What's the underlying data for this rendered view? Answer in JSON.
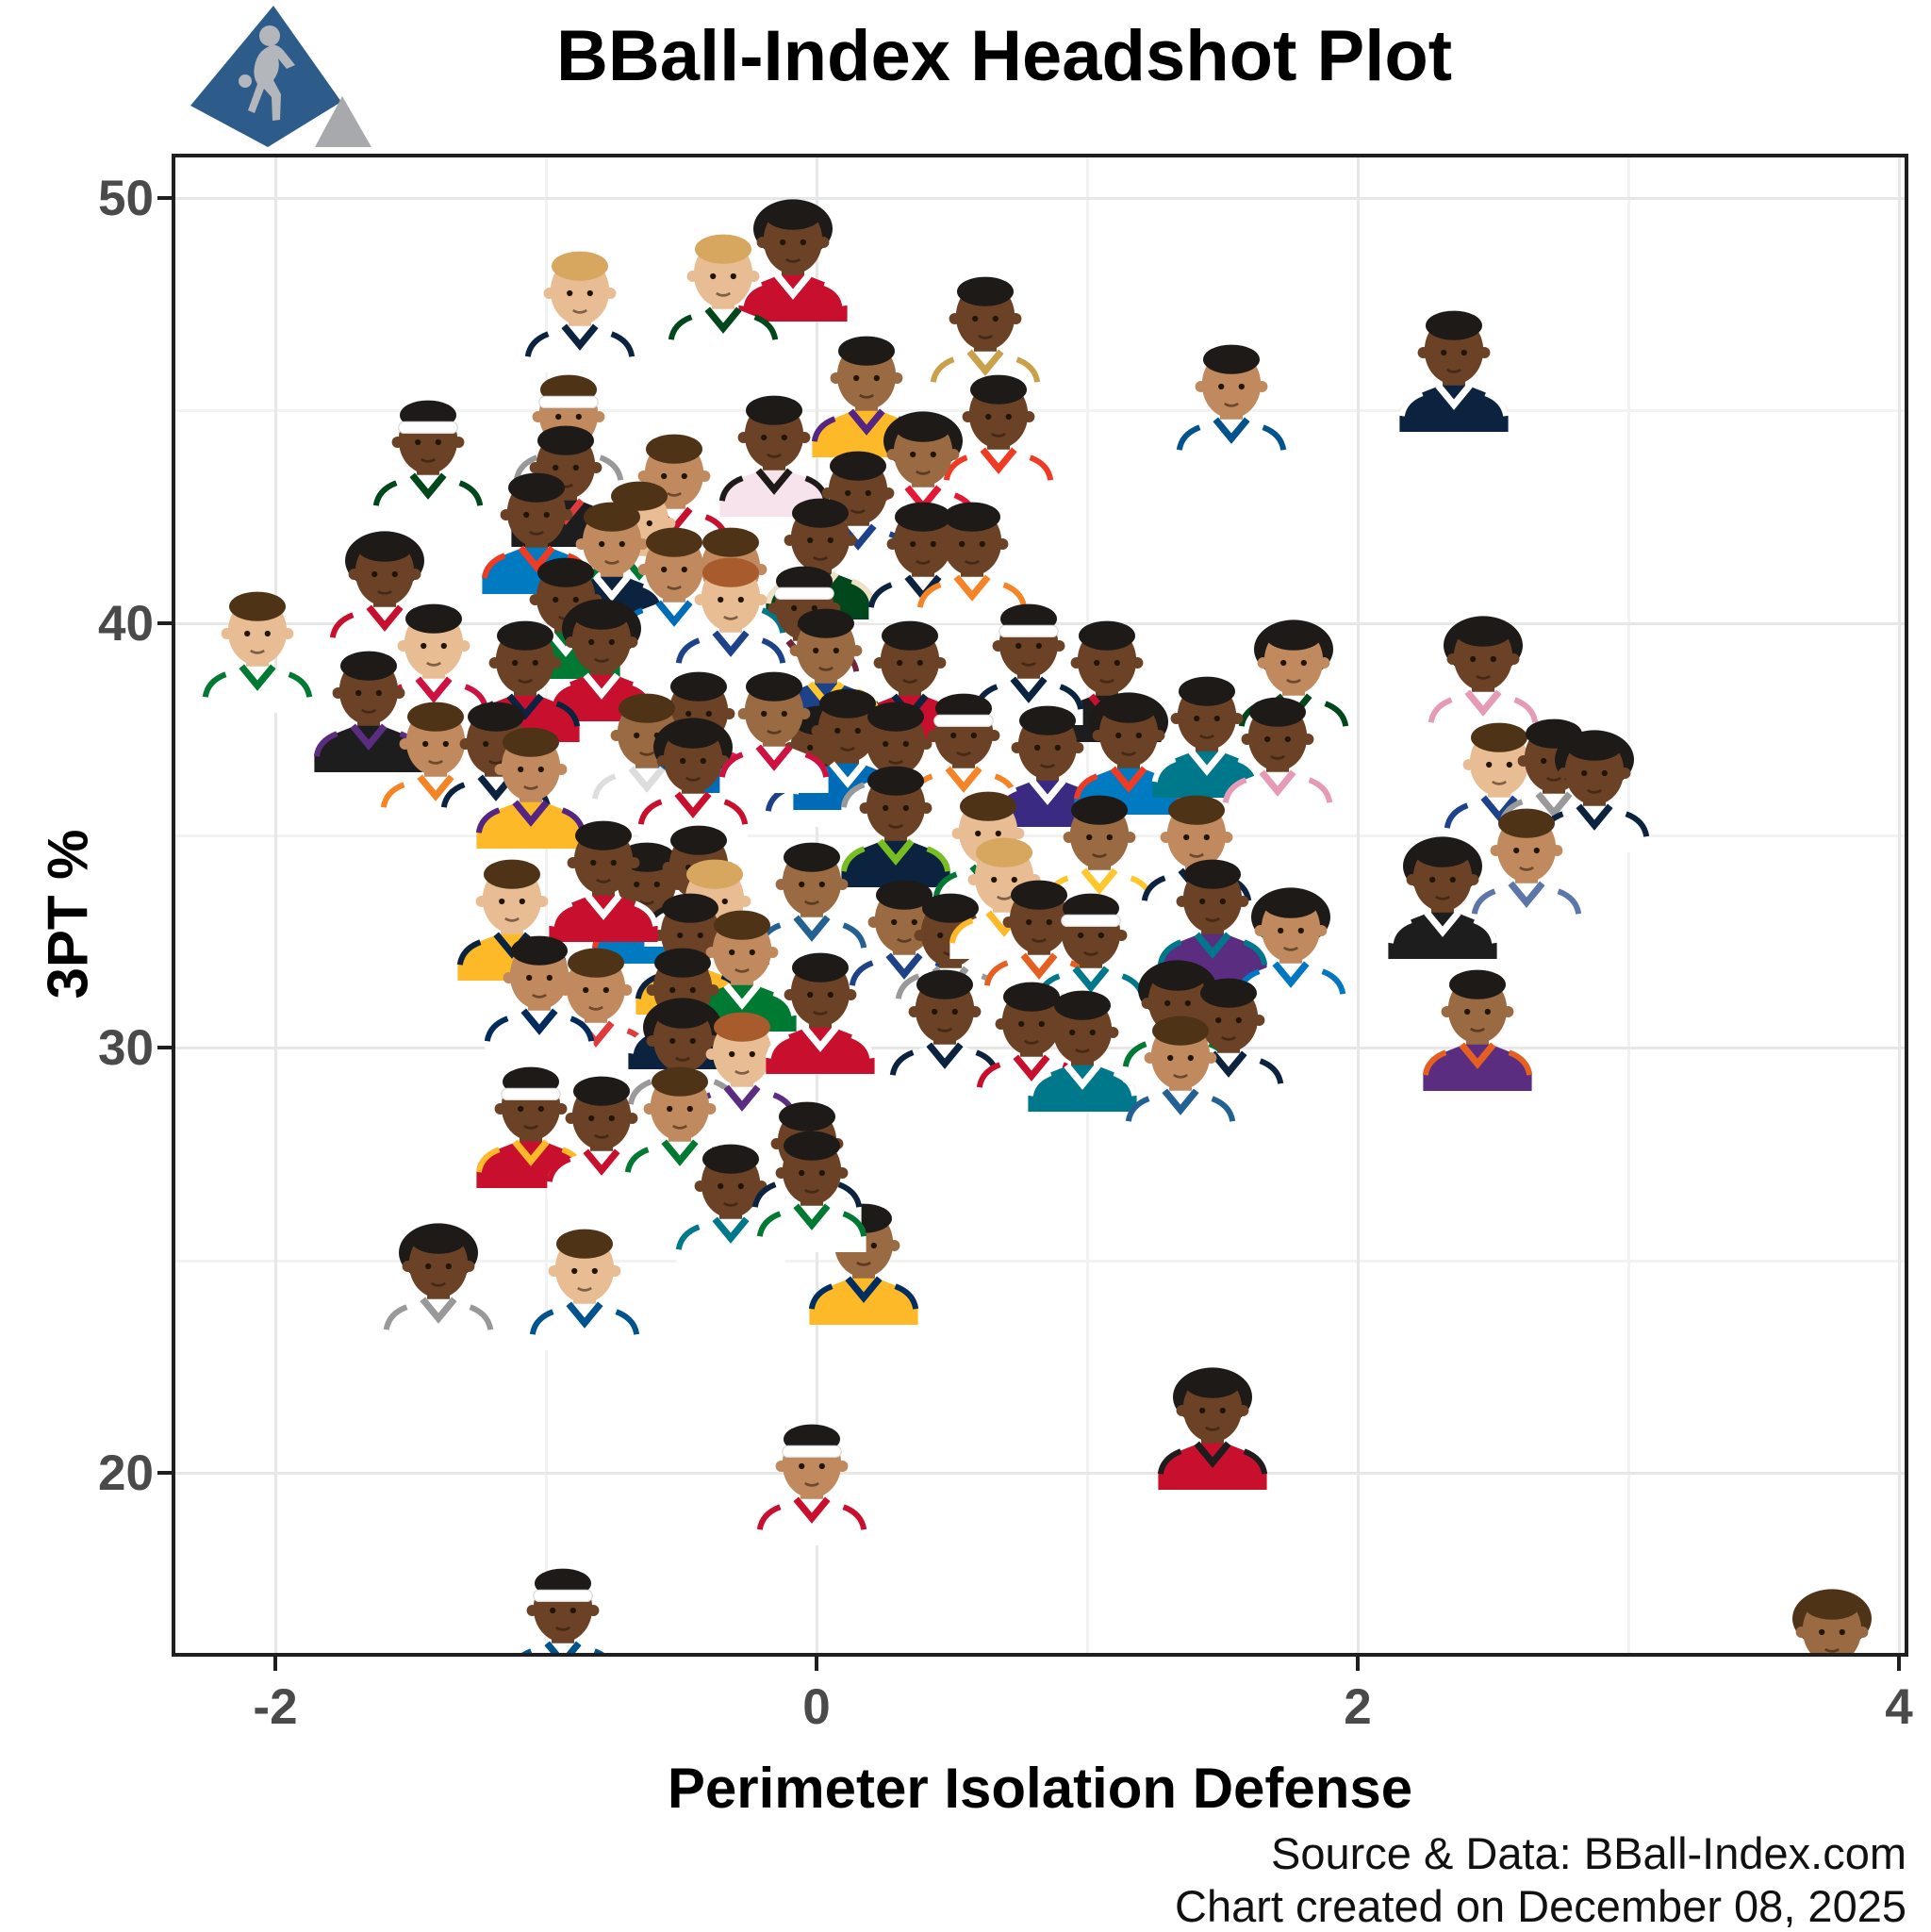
{
  "title": "BBall-Index Headshot Plot",
  "logo": {
    "name": "bball-index-logo",
    "shape_color": "#2e5c8a",
    "accent_color": "#a7a9ac",
    "silhouette": "basketball-player-dribbling"
  },
  "footer": {
    "source": "Source & Data: BBall-Index.com",
    "created": "Chart created on December 08, 2025"
  },
  "chart_data": {
    "type": "scatter",
    "title": "BBall-Index Headshot Plot",
    "xlabel": "Perimeter Isolation Defense",
    "ylabel": "3PT %",
    "xlim": [
      -2.38,
      4.03
    ],
    "ylim": [
      15.7,
      51.0
    ],
    "x_ticks": [
      -2,
      0,
      2,
      4
    ],
    "x_tick_labels": [
      "-2",
      "0",
      "2",
      "4"
    ],
    "x_minor_ticks": [
      -1,
      1,
      3
    ],
    "y_ticks": [
      50,
      40,
      30,
      20
    ],
    "y_tick_labels": [
      "50",
      "40",
      "30",
      "20"
    ],
    "y_minor_ticks": [
      45,
      35,
      25
    ],
    "grid": "major+minor",
    "legend": "none",
    "marker": "player-headshot",
    "points": [
      {
        "x": -0.1,
        "y": 49.0,
        "j": "#c8102e",
        "t": "#ffffff",
        "s": "#6b4226",
        "h": "#1e1a18",
        "a": 1
      },
      {
        "x": -0.36,
        "y": 48.2,
        "j": "#ffffff",
        "t": "#00471b",
        "s": "#e9bd93",
        "h": "#d7a75f"
      },
      {
        "x": -0.89,
        "y": 47.8,
        "j": "#ffffff",
        "t": "#0c2340",
        "s": "#e9bd93",
        "h": "#d7a75f"
      },
      {
        "x": 0.61,
        "y": 47.2,
        "j": "#ffffff",
        "t": "#c9a14a",
        "s": "#6b4226",
        "h": "#1e1a18"
      },
      {
        "x": 2.34,
        "y": 46.4,
        "j": "#0c2340",
        "t": "#ffffff",
        "s": "#6b4226",
        "h": "#1e1a18"
      },
      {
        "x": 0.17,
        "y": 45.8,
        "j": "#fdb927",
        "t": "#552583",
        "s": "#9a6a42",
        "h": "#1e1a18"
      },
      {
        "x": 1.52,
        "y": 45.6,
        "j": "#ffffff",
        "t": "#00538c",
        "s": "#c08a5e",
        "h": "#1e1a18"
      },
      {
        "x": 0.66,
        "y": 44.9,
        "j": "#ffffff",
        "t": "#ef3b24",
        "s": "#6b4226",
        "h": "#1e1a18"
      },
      {
        "x": -0.93,
        "y": 44.9,
        "j": "#ffffff",
        "t": "#999999",
        "s": "#c08a5e",
        "h": "#4f3317",
        "b": 1
      },
      {
        "x": -1.45,
        "y": 44.3,
        "j": "#ffffff",
        "t": "#00471b",
        "s": "#6b4226",
        "h": "#1e1a18",
        "b": 1
      },
      {
        "x": -0.17,
        "y": 44.4,
        "j": "#f6e3ec",
        "t": "#1e1a18",
        "s": "#6b4226",
        "h": "#1e1a18"
      },
      {
        "x": 0.38,
        "y": 44.0,
        "j": "#ffffff",
        "t": "#e31837",
        "s": "#9a6a42",
        "h": "#1e1a18",
        "a": 1
      },
      {
        "x": -0.54,
        "y": 43.5,
        "j": "#ffffff",
        "t": "#c8102e",
        "s": "#c08a5e",
        "h": "#4f3317"
      },
      {
        "x": -0.94,
        "y": 43.7,
        "j": "#1d1d1d",
        "t": "#e03a3e",
        "s": "#6b4226",
        "h": "#1e1a18"
      },
      {
        "x": 0.14,
        "y": 43.1,
        "j": "#ffffff",
        "t": "#1d428a",
        "s": "#6b4226",
        "h": "#1e1a18"
      },
      {
        "x": -1.05,
        "y": 42.6,
        "j": "#007ac1",
        "t": "#ef3b24",
        "s": "#6b4226",
        "h": "#1e1a18"
      },
      {
        "x": -0.67,
        "y": 42.4,
        "j": "#ffffff",
        "t": "#007a33",
        "s": "#e9bd93",
        "h": "#4f3317"
      },
      {
        "x": 0.0,
        "y": 42.0,
        "j": "#00471b",
        "t": "#eee1c6",
        "s": "#6b4226",
        "h": "#1e1a18"
      },
      {
        "x": -0.77,
        "y": 41.9,
        "j": "#0c2340",
        "t": "#ffffff",
        "s": "#c08a5e",
        "h": "#4f3317"
      },
      {
        "x": 0.38,
        "y": 41.9,
        "j": "#ffffff",
        "t": "#0c2340",
        "s": "#6b4226",
        "h": "#1e1a18"
      },
      {
        "x": 0.56,
        "y": 41.9,
        "j": "#ffffff",
        "t": "#f58426",
        "s": "#6b4226",
        "h": "#1e1a18"
      },
      {
        "x": -1.61,
        "y": 41.2,
        "j": "#ffffff",
        "t": "#c8102e",
        "s": "#6b4226",
        "h": "#1e1a18",
        "a": 1
      },
      {
        "x": -0.33,
        "y": 41.3,
        "j": "#ffffff",
        "t": "#00788c",
        "s": "#c08a5e",
        "h": "#4f3317"
      },
      {
        "x": -0.54,
        "y": 41.3,
        "j": "#ffffff",
        "t": "#006bb6",
        "s": "#c08a5e",
        "h": "#4f3317"
      },
      {
        "x": -2.08,
        "y": 39.8,
        "j": "#ffffff",
        "t": "#007a33",
        "s": "#e9bd93",
        "h": "#4f3317"
      },
      {
        "x": -0.06,
        "y": 40.4,
        "j": "#ffffff",
        "t": "#6f263d",
        "s": "#6b4226",
        "h": "#1e1a18",
        "b": 1
      },
      {
        "x": -0.33,
        "y": 40.6,
        "j": "#ffffff",
        "t": "#1d428a",
        "s": "#e9bd93",
        "h": "#a85b2d"
      },
      {
        "x": -0.94,
        "y": 40.6,
        "j": "#007a33",
        "t": "#ffffff",
        "s": "#6b4226",
        "h": "#1e1a18"
      },
      {
        "x": 2.45,
        "y": 39.2,
        "j": "#ffffff",
        "t": "#e59ab5",
        "s": "#6b4226",
        "h": "#1e1a18",
        "a": 1
      },
      {
        "x": 1.75,
        "y": 39.1,
        "j": "#ffffff",
        "t": "#00471b",
        "s": "#c08a5e",
        "h": "#1e1a18",
        "a": 1
      },
      {
        "x": 1.06,
        "y": 39.1,
        "j": "#1d1d1d",
        "t": "#c8102e",
        "s": "#6b4226",
        "h": "#1e1a18"
      },
      {
        "x": 0.77,
        "y": 39.5,
        "j": "#ffffff",
        "t": "#0c2340",
        "s": "#6b4226",
        "h": "#1e1a18",
        "b": 1
      },
      {
        "x": 0.33,
        "y": 39.1,
        "j": "#c8102e",
        "t": "#0c2340",
        "s": "#6b4226",
        "h": "#1e1a18"
      },
      {
        "x": -0.81,
        "y": 39.6,
        "j": "#c8102e",
        "t": "#ffffff",
        "s": "#6b4226",
        "h": "#1e1a18",
        "a": 1
      },
      {
        "x": -1.43,
        "y": 39.5,
        "j": "#ffffff",
        "t": "#ce1141",
        "s": "#e9bd93",
        "h": "#1e1a18"
      },
      {
        "x": -1.67,
        "y": 38.4,
        "j": "#1d1d1d",
        "t": "#5a2d81",
        "s": "#6b4226",
        "h": "#1e1a18"
      },
      {
        "x": -1.09,
        "y": 39.1,
        "j": "#c8102e",
        "t": "#0c2340",
        "s": "#6b4226",
        "h": "#1e1a18"
      },
      {
        "x": 0.02,
        "y": 39.4,
        "j": "#1d428a",
        "t": "#ffc72c",
        "s": "#9a6a42",
        "h": "#1e1a18"
      },
      {
        "x": 0.0,
        "y": 37.1,
        "j": "#ffffff",
        "t": "#1d428a",
        "s": "#6b4226",
        "h": "#1e1a18"
      },
      {
        "x": 0.1,
        "y": 37.5,
        "j": "#006bb6",
        "t": "#ffffff",
        "s": "#6b4226",
        "h": "#1e1a18"
      },
      {
        "x": 0.28,
        "y": 37.2,
        "j": "#ffffff",
        "t": "#999999",
        "s": "#6b4226",
        "h": "#1e1a18"
      },
      {
        "x": 0.53,
        "y": 37.4,
        "j": "#ffffff",
        "t": "#f58426",
        "s": "#6b4226",
        "h": "#1e1a18",
        "b": 1
      },
      {
        "x": 0.84,
        "y": 37.1,
        "j": "#3b2a82",
        "t": "#ffffff",
        "s": "#6b4226",
        "h": "#1e1a18"
      },
      {
        "x": 1.14,
        "y": 37.4,
        "j": "#007ac1",
        "t": "#ef3b24",
        "s": "#6b4226",
        "h": "#1e1a18",
        "a": 1
      },
      {
        "x": 1.43,
        "y": 37.8,
        "j": "#00788c",
        "t": "#ffffff",
        "s": "#6b4226",
        "h": "#1e1a18"
      },
      {
        "x": 1.69,
        "y": 37.3,
        "j": "#ffffff",
        "t": "#e59ab5",
        "s": "#6b4226",
        "h": "#1e1a18"
      },
      {
        "x": -0.45,
        "y": 37.9,
        "j": "#006bb6",
        "t": "#ed174c",
        "s": "#6b4226",
        "h": "#1e1a18"
      },
      {
        "x": -0.64,
        "y": 37.4,
        "j": "#ffffff",
        "t": "#dddddd",
        "s": "#9a6a42",
        "h": "#4f3317"
      },
      {
        "x": -0.47,
        "y": 36.8,
        "j": "#ffffff",
        "t": "#c8102e",
        "s": "#6b4226",
        "h": "#1e1a18",
        "a": 1
      },
      {
        "x": -0.17,
        "y": 37.9,
        "j": "#ffffff",
        "t": "#ce1141",
        "s": "#9a6a42",
        "h": "#1e1a18"
      },
      {
        "x": -1.42,
        "y": 37.2,
        "j": "#ffffff",
        "t": "#f58426",
        "s": "#c08a5e",
        "h": "#4f3317"
      },
      {
        "x": -1.2,
        "y": 37.2,
        "j": "#ffffff",
        "t": "#0c2340",
        "s": "#6b4226",
        "h": "#1e1a18"
      },
      {
        "x": -1.07,
        "y": 36.6,
        "j": "#fdb927",
        "t": "#552583",
        "s": "#c08a5e",
        "h": "#4f3317"
      },
      {
        "x": 2.51,
        "y": 36.7,
        "j": "#ffffff",
        "t": "#1d428a",
        "s": "#e9bd93",
        "h": "#4f3317"
      },
      {
        "x": 2.71,
        "y": 36.8,
        "j": "#ffffff",
        "t": "#999999",
        "s": "#6b4226",
        "h": "#1e1a18"
      },
      {
        "x": 2.86,
        "y": 36.5,
        "j": "#ffffff",
        "t": "#0c2340",
        "s": "#6b4226",
        "h": "#1e1a18",
        "a": 1
      },
      {
        "x": 0.28,
        "y": 35.7,
        "j": "#0c2340",
        "t": "#78be20",
        "s": "#6b4226",
        "h": "#1e1a18"
      },
      {
        "x": 0.62,
        "y": 35.1,
        "j": "#ffffff",
        "t": "#007a33",
        "s": "#e9bd93",
        "h": "#4f3317"
      },
      {
        "x": 1.03,
        "y": 35.0,
        "j": "#ffffff",
        "t": "#ffc72c",
        "s": "#9a6a42",
        "h": "#1e1a18"
      },
      {
        "x": 1.39,
        "y": 35.0,
        "j": "#ffffff",
        "t": "#0c2340",
        "s": "#c08a5e",
        "h": "#4f3317"
      },
      {
        "x": -1.14,
        "y": 33.5,
        "j": "#fdb927",
        "t": "#0c2340",
        "s": "#e9bd93",
        "h": "#4f3317"
      },
      {
        "x": 2.61,
        "y": 34.7,
        "j": "#ffffff",
        "t": "#5d76a9",
        "s": "#c08a5e",
        "h": "#4f3317"
      },
      {
        "x": 2.3,
        "y": 34.0,
        "j": "#1d1d1d",
        "t": "#ffffff",
        "s": "#6b4226",
        "h": "#1e1a18",
        "a": 1
      },
      {
        "x": -0.03,
        "y": 33.9,
        "j": "#ffffff",
        "t": "#236192",
        "s": "#9a6a42",
        "h": "#1e1a18"
      },
      {
        "x": 0.31,
        "y": 33.0,
        "j": "#ffffff",
        "t": "#1d428a",
        "s": "#9a6a42",
        "h": "#1e1a18"
      },
      {
        "x": 0.48,
        "y": 32.7,
        "j": "#ffffff",
        "t": "#999999",
        "s": "#6b4226",
        "h": "#1e1a18"
      },
      {
        "x": 0.68,
        "y": 34.0,
        "j": "#ffffff",
        "t": "#fdb927",
        "s": "#e9bd93",
        "h": "#d7a75f"
      },
      {
        "x": 0.81,
        "y": 33.0,
        "j": "#ffffff",
        "t": "#e56020",
        "s": "#6b4226",
        "h": "#1e1a18"
      },
      {
        "x": 1.0,
        "y": 32.7,
        "j": "#ffffff",
        "t": "#00788c",
        "s": "#6b4226",
        "h": "#1e1a18",
        "b": 1
      },
      {
        "x": 1.45,
        "y": 33.5,
        "j": "#5a2d81",
        "t": "#00788c",
        "s": "#6b4226",
        "h": "#1e1a18"
      },
      {
        "x": 1.74,
        "y": 32.8,
        "j": "#ffffff",
        "t": "#0077c0",
        "s": "#c08a5e",
        "h": "#1e1a18",
        "a": 1
      },
      {
        "x": -0.64,
        "y": 33.9,
        "j": "#007ac1",
        "t": "#ef3b24",
        "s": "#6b4226",
        "h": "#1e1a18"
      },
      {
        "x": -0.45,
        "y": 34.3,
        "j": "#ffffff",
        "t": "#1d1d1d",
        "s": "#6b4226",
        "h": "#1e1a18"
      },
      {
        "x": -0.39,
        "y": 33.5,
        "j": "#ffffff",
        "t": "#ce1141",
        "s": "#e9bd93",
        "h": "#d7a75f"
      },
      {
        "x": -0.48,
        "y": 32.7,
        "j": "#fdb927",
        "t": "#0c2340",
        "s": "#6b4226",
        "h": "#1e1a18"
      },
      {
        "x": -0.29,
        "y": 32.3,
        "j": "#007a33",
        "t": "#ffffff",
        "s": "#c08a5e",
        "h": "#4f3317"
      },
      {
        "x": -0.8,
        "y": 34.4,
        "j": "#c8102e",
        "t": "#ffffff",
        "s": "#6b4226",
        "h": "#1e1a18"
      },
      {
        "x": -0.83,
        "y": 31.4,
        "j": "#ffffff",
        "t": "#e03a3e",
        "s": "#c08a5e",
        "h": "#4f3317"
      },
      {
        "x": -1.04,
        "y": 31.7,
        "j": "#ffffff",
        "t": "#002b5c",
        "s": "#c08a5e",
        "h": "#1e1a18"
      },
      {
        "x": -0.51,
        "y": 31.4,
        "j": "#0c2340",
        "t": "#ffffff",
        "s": "#6b4226",
        "h": "#1e1a18"
      },
      {
        "x": -0.51,
        "y": 30.2,
        "j": "#ffffff",
        "t": "#999999",
        "s": "#6b4226",
        "h": "#1e1a18",
        "a": 1
      },
      {
        "x": -0.29,
        "y": 29.9,
        "j": "#ffffff",
        "t": "#5a2d81",
        "s": "#e9bd93",
        "h": "#a85b2d"
      },
      {
        "x": 0.0,
        "y": 31.3,
        "j": "#c8102e",
        "t": "#ffffff",
        "s": "#6b4226",
        "h": "#1e1a18"
      },
      {
        "x": 0.46,
        "y": 30.9,
        "j": "#ffffff",
        "t": "#0c2340",
        "s": "#6b4226",
        "h": "#1e1a18"
      },
      {
        "x": 0.78,
        "y": 30.6,
        "j": "#ffffff",
        "t": "#c8102e",
        "s": "#6b4226",
        "h": "#1e1a18"
      },
      {
        "x": 0.97,
        "y": 30.4,
        "j": "#00788c",
        "t": "#ffffff",
        "s": "#6b4226",
        "h": "#1e1a18"
      },
      {
        "x": 1.32,
        "y": 31.1,
        "j": "#ffffff",
        "t": "#007a33",
        "s": "#6b4226",
        "h": "#1e1a18",
        "a": 1
      },
      {
        "x": 1.51,
        "y": 30.7,
        "j": "#ffffff",
        "t": "#0c2340",
        "s": "#6b4226",
        "h": "#1e1a18"
      },
      {
        "x": 1.33,
        "y": 29.8,
        "j": "#ffffff",
        "t": "#236192",
        "s": "#c08a5e",
        "h": "#4f3317"
      },
      {
        "x": 2.43,
        "y": 30.9,
        "j": "#5a2d81",
        "t": "#e56020",
        "s": "#9a6a42",
        "h": "#1e1a18"
      },
      {
        "x": -1.07,
        "y": 28.6,
        "j": "#c8102e",
        "t": "#fdb927",
        "s": "#6b4226",
        "h": "#1e1a18",
        "b": 1
      },
      {
        "x": -0.81,
        "y": 28.4,
        "j": "#ffffff",
        "t": "#c8102e",
        "s": "#6b4226",
        "h": "#1e1a18"
      },
      {
        "x": -0.52,
        "y": 28.6,
        "j": "#ffffff",
        "t": "#007a33",
        "s": "#c08a5e",
        "h": "#4f3317"
      },
      {
        "x": -0.33,
        "y": 26.8,
        "j": "#ffffff",
        "t": "#00788c",
        "s": "#6b4226",
        "h": "#1e1a18"
      },
      {
        "x": 0.16,
        "y": 25.4,
        "j": "#fdb927",
        "t": "#002d62",
        "s": "#9a6a42",
        "h": "#1e1a18"
      },
      {
        "x": -0.05,
        "y": 27.8,
        "j": "#ffffff",
        "t": "#0c2340",
        "s": "#6b4226",
        "h": "#1e1a18"
      },
      {
        "x": -0.03,
        "y": 27.1,
        "j": "#ffffff",
        "t": "#007a33",
        "s": "#6b4226",
        "h": "#1e1a18"
      },
      {
        "x": -1.41,
        "y": 24.9,
        "j": "#ffffff",
        "t": "#999999",
        "s": "#6b4226",
        "h": "#1e1a18",
        "a": 1
      },
      {
        "x": -0.87,
        "y": 24.8,
        "j": "#ffffff",
        "t": "#00538c",
        "s": "#e9bd93",
        "h": "#4f3317"
      },
      {
        "x": -0.03,
        "y": 20.2,
        "j": "#ffffff",
        "t": "#c8102e",
        "s": "#c08a5e",
        "h": "#1e1a18",
        "b": 1
      },
      {
        "x": 1.45,
        "y": 21.5,
        "j": "#c8102e",
        "t": "#1d1d1d",
        "s": "#6b4226",
        "h": "#1e1a18",
        "a": 1
      },
      {
        "x": -0.95,
        "y": 16.8,
        "j": "#ffffff",
        "t": "#00538c",
        "s": "#6b4226",
        "h": "#1e1a18",
        "b": 1
      },
      {
        "x": 3.74,
        "y": 16.3,
        "j": "#1d1d1d",
        "t": "#c8102e",
        "s": "#9a6a42",
        "h": "#4f3317",
        "a": 1
      }
    ]
  }
}
